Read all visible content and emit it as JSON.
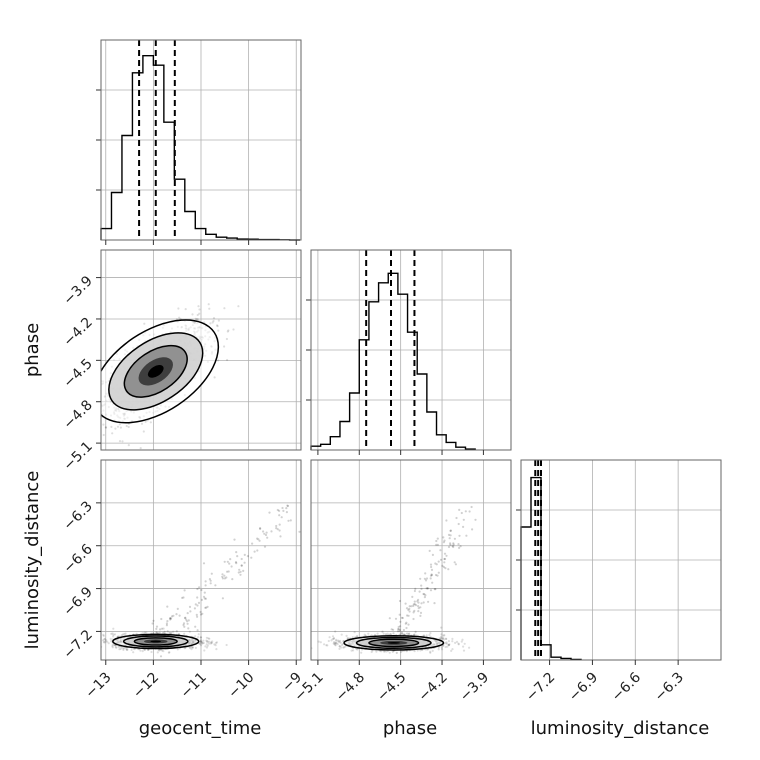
{
  "chart_data": {
    "type": "corner",
    "grid": true,
    "parameters": [
      {
        "name": "geocent_time",
        "label": "geocent_time",
        "range": [
          -13.1,
          -8.9
        ],
        "ticks": [
          -13,
          -12,
          -11,
          -10,
          -9
        ],
        "tick_labels": [
          "−13",
          "−12",
          "−11",
          "−10",
          "−9"
        ]
      },
      {
        "name": "phase",
        "label": "phase",
        "range": [
          -5.15,
          -3.7
        ],
        "ticks": [
          -5.1,
          -4.8,
          -4.5,
          -4.2,
          -3.9
        ],
        "tick_labels": [
          "−5.1",
          "−4.8",
          "−4.5",
          "−4.2",
          "−3.9"
        ]
      },
      {
        "name": "luminosity_distance",
        "label": "luminosity_distance",
        "range": [
          -7.4,
          -6.0
        ],
        "ticks": [
          -7.2,
          -6.9,
          -6.6,
          -6.3
        ],
        "tick_labels": [
          "−7.2",
          "−6.9",
          "−6.6",
          "−6.3"
        ]
      }
    ],
    "histograms": [
      {
        "param": "geocent_time",
        "bin_edges": [
          -13.1,
          -12.88,
          -12.66,
          -12.44,
          -12.22,
          -12.0,
          -11.78,
          -11.56,
          -11.34,
          -11.12,
          -10.9,
          -10.68,
          -10.46,
          -10.24,
          -10.02,
          -9.8,
          -9.58,
          -9.36,
          -9.14,
          -8.92
        ],
        "counts": [
          0.06,
          0.25,
          0.55,
          0.88,
          0.97,
          0.92,
          0.62,
          0.32,
          0.15,
          0.06,
          0.03,
          0.015,
          0.01,
          0.005,
          0.004,
          0.002,
          0.002,
          0.001,
          0.0
        ],
        "quantiles": [
          -12.3,
          -11.95,
          -11.55
        ]
      },
      {
        "param": "phase",
        "bin_edges": [
          -5.15,
          -5.08,
          -5.01,
          -4.94,
          -4.87,
          -4.8,
          -4.73,
          -4.66,
          -4.59,
          -4.52,
          -4.45,
          -4.38,
          -4.31,
          -4.24,
          -4.17,
          -4.1,
          -4.03,
          -3.96
        ],
        "counts": [
          0.02,
          0.03,
          0.07,
          0.15,
          0.3,
          0.58,
          0.78,
          0.88,
          0.93,
          0.82,
          0.62,
          0.4,
          0.2,
          0.08,
          0.04,
          0.015,
          0.005
        ],
        "quantiles": [
          -4.75,
          -4.57,
          -4.4
        ]
      },
      {
        "param": "luminosity_distance",
        "bin_edges": [
          -7.4,
          -7.33,
          -7.26,
          -7.19,
          -7.12,
          -7.05,
          -6.98
        ],
        "counts": [
          0.7,
          0.96,
          0.08,
          0.015,
          0.008,
          0.003
        ],
        "quantiles": [
          -7.3,
          -7.28,
          -7.26
        ]
      }
    ],
    "histogram_ylim": [
      0,
      1.0
    ],
    "scatter_panels": [
      {
        "x": "geocent_time",
        "y": "phase",
        "center": [
          -11.95,
          -4.58
        ],
        "spread": [
          0.55,
          0.17
        ],
        "correlation": 0.7
      },
      {
        "x": "geocent_time",
        "y": "luminosity_distance",
        "center": [
          -11.95,
          -7.27
        ],
        "spread": [
          0.45,
          0.025
        ],
        "tail_to": [
          -9.0,
          -6.3
        ]
      },
      {
        "x": "phase",
        "y": "luminosity_distance",
        "center": [
          -4.55,
          -7.28
        ],
        "spread": [
          0.18,
          0.025
        ],
        "tail_to": [
          -4.0,
          -6.35
        ]
      }
    ],
    "quantile_line_style": "dashed",
    "legend": "none"
  },
  "colors": {
    "line": "#000000",
    "scatter": "#000000",
    "grid": "#b0b0b0",
    "frame": "#666666"
  }
}
